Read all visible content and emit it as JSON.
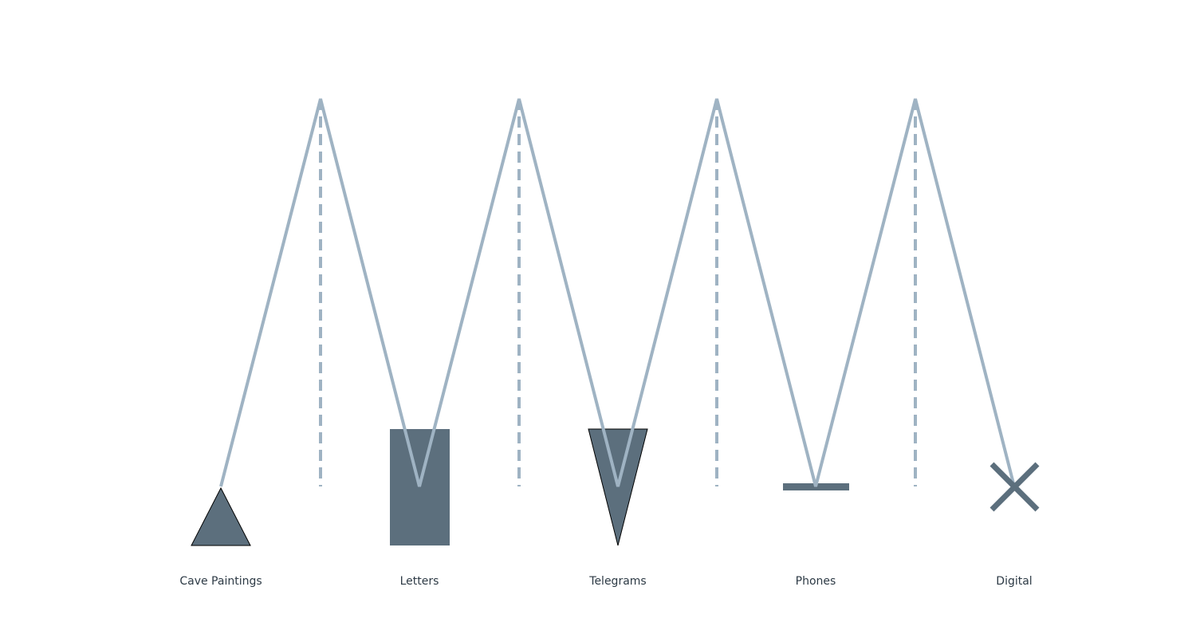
{
  "colors": {
    "background": "#ffffff",
    "line": "#9fb3c3",
    "dashed_line": "#9fb3c3",
    "shape_fill": "#5c6f7d",
    "shape_stroke": "#000000",
    "label_text": "#2d3a45"
  },
  "stages": [
    {
      "label": "Cave Paintings",
      "icon": "triangle-up-icon"
    },
    {
      "label": "Letters",
      "icon": "rectangle-icon"
    },
    {
      "label": "Telegrams",
      "icon": "triangle-down-icon"
    },
    {
      "label": "Phones",
      "icon": "flat-bar-icon"
    },
    {
      "label": "Digital",
      "icon": "x-mark-icon"
    }
  ]
}
